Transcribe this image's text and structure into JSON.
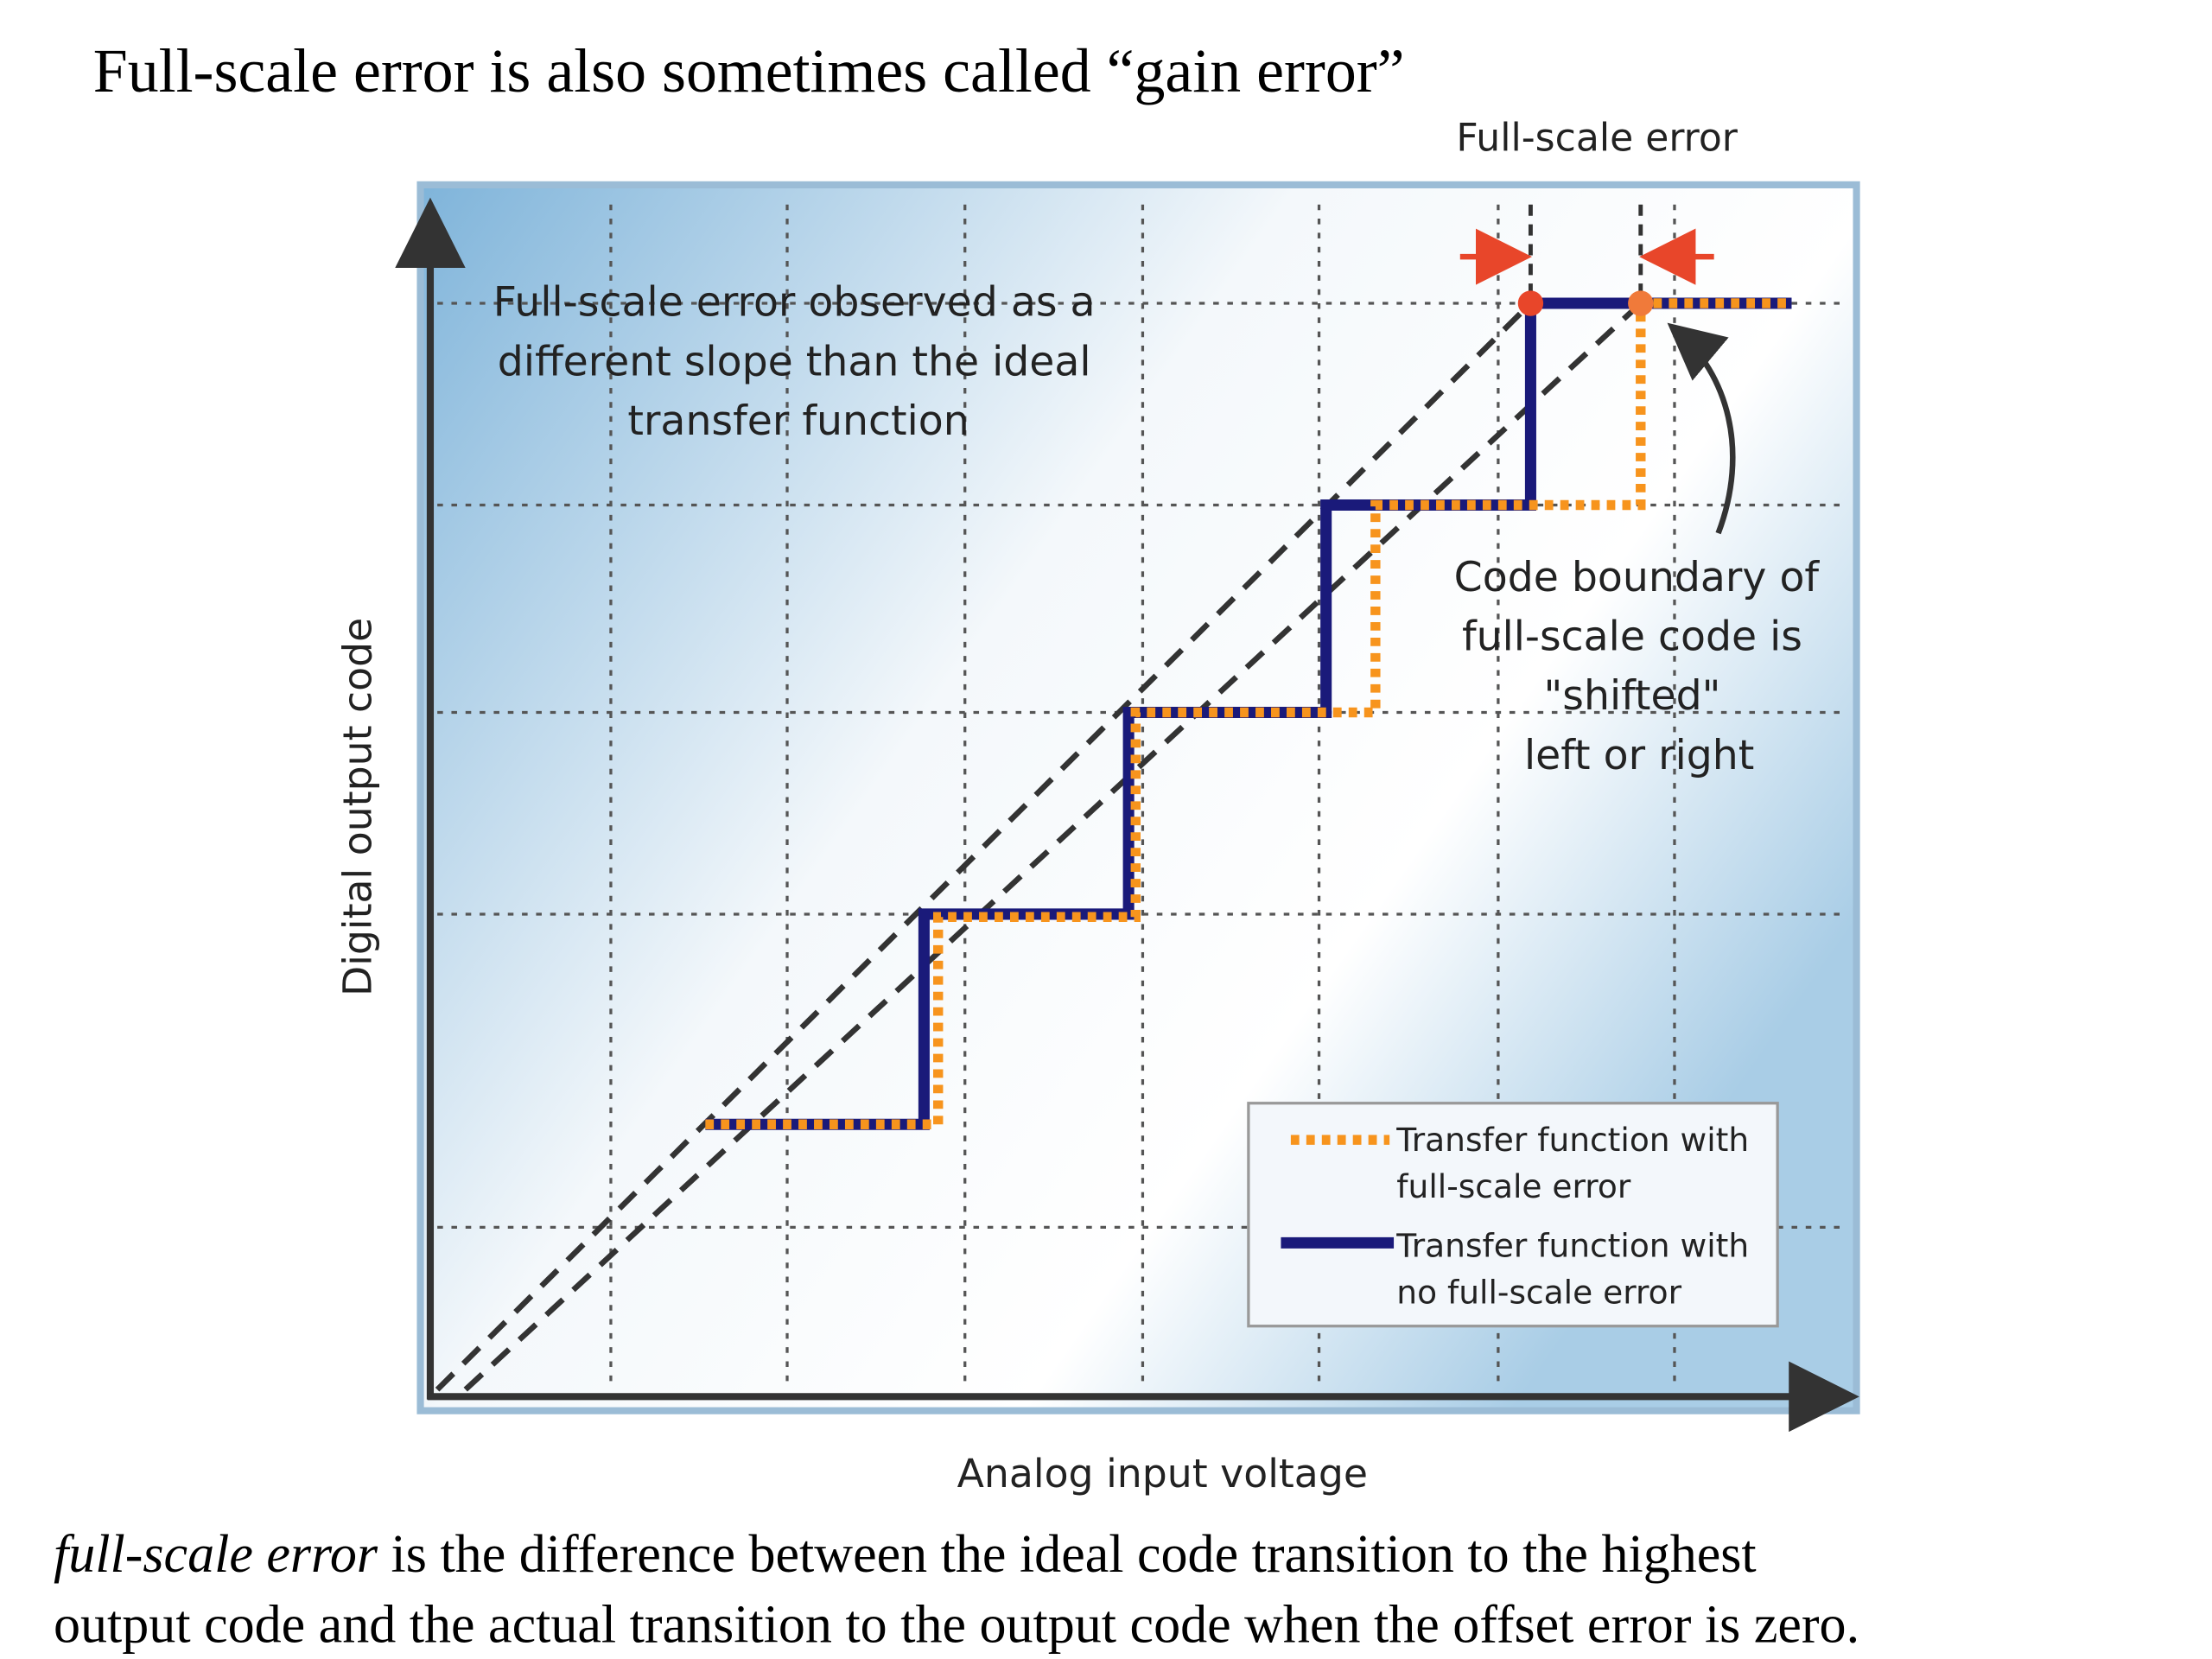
{
  "slide": {
    "title": "Full-scale error is also sometimes called “gain error”",
    "diagram": {
      "top_label": "Full-scale error",
      "annotation_lines": [
        "Full-scale error observed as a",
        "different slope than the ideal",
        "transfer function"
      ],
      "boundary_lines": [
        "Code boundary of",
        "full-scale code is",
        "\"shifted\"",
        "left or right"
      ],
      "legend": [
        {
          "lines": [
            "Transfer function with",
            "full-scale error"
          ]
        },
        {
          "lines": [
            "Transfer function with",
            "no full-scale error"
          ]
        }
      ],
      "y_axis_label": "Digital output code",
      "x_axis_label": "Analog input voltage"
    },
    "caption": {
      "term": "full-scale error",
      "line1": "is the difference between the ideal code transition to the highest",
      "line2": "output code and the actual transition to the output code when the offset error is zero."
    }
  }
}
